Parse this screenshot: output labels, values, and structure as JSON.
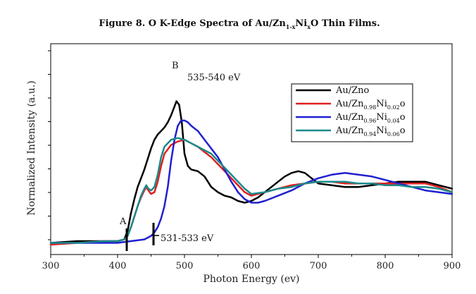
{
  "chart_data": {
    "type": "line",
    "title": {
      "prefix": "Figure 8. O K-Edge Spectra of Au/Zn",
      "sub1": "1-x",
      "mid": "Ni",
      "sub2": "x",
      "suffix": "O Thin Films."
    },
    "xlabel": "Photon Energy (ev)",
    "ylabel": "Normalized Intensity (a.u.)",
    "xlim": [
      300,
      900
    ],
    "ylim": [
      0,
      1.0
    ],
    "x_ticks": [
      300,
      400,
      500,
      600,
      700,
      800,
      900
    ],
    "grid": false,
    "legend_position": "right",
    "annotations": {
      "peak_B": "B",
      "peak_B_range": "535-540 eV",
      "edge_A": "A",
      "edge_range": "531-533 eV"
    },
    "series": [
      {
        "name": "Au/Zno",
        "legend": [
          [
            "Au/Zno",
            ""
          ]
        ],
        "color": "#000000",
        "x": [
          300,
          340,
          380,
          400,
          410,
          415,
          420,
          425,
          430,
          435,
          440,
          445,
          450,
          455,
          460,
          465,
          470,
          475,
          480,
          485,
          488,
          492,
          496,
          500,
          505,
          510,
          520,
          530,
          540,
          550,
          560,
          570,
          580,
          590,
          600,
          610,
          620,
          630,
          640,
          650,
          660,
          670,
          680,
          690,
          700,
          720,
          740,
          760,
          780,
          800,
          820,
          840,
          860,
          880,
          900
        ],
        "y": [
          0.01,
          0.02,
          0.02,
          0.02,
          0.03,
          0.08,
          0.18,
          0.26,
          0.33,
          0.38,
          0.43,
          0.49,
          0.55,
          0.6,
          0.63,
          0.65,
          0.67,
          0.7,
          0.74,
          0.79,
          0.82,
          0.8,
          0.7,
          0.52,
          0.45,
          0.43,
          0.42,
          0.39,
          0.33,
          0.3,
          0.28,
          0.27,
          0.25,
          0.24,
          0.25,
          0.27,
          0.3,
          0.33,
          0.36,
          0.39,
          0.41,
          0.42,
          0.41,
          0.38,
          0.35,
          0.34,
          0.33,
          0.33,
          0.34,
          0.35,
          0.36,
          0.36,
          0.36,
          0.34,
          0.32
        ]
      },
      {
        "name": "Au/Zn0.98Ni0.02O",
        "legend": [
          [
            "Au/Zn",
            ""
          ],
          [
            "0.98",
            "sub"
          ],
          [
            "Ni",
            ""
          ],
          [
            "0.02",
            "sub"
          ],
          [
            "o",
            ""
          ]
        ],
        "color": "#e02020",
        "x": [
          300,
          340,
          380,
          400,
          410,
          415,
          420,
          425,
          430,
          435,
          440,
          443,
          446,
          450,
          455,
          460,
          465,
          470,
          480,
          490,
          500,
          510,
          520,
          530,
          540,
          550,
          560,
          570,
          580,
          590,
          600,
          620,
          640,
          660,
          680,
          700,
          720,
          740,
          760,
          780,
          800,
          820,
          840,
          860,
          880,
          900
        ],
        "y": [
          0.0,
          0.01,
          0.02,
          0.02,
          0.03,
          0.05,
          0.1,
          0.16,
          0.22,
          0.27,
          0.31,
          0.33,
          0.31,
          0.29,
          0.3,
          0.36,
          0.45,
          0.52,
          0.57,
          0.59,
          0.6,
          0.58,
          0.56,
          0.53,
          0.5,
          0.46,
          0.42,
          0.38,
          0.34,
          0.3,
          0.28,
          0.3,
          0.32,
          0.34,
          0.35,
          0.36,
          0.36,
          0.35,
          0.35,
          0.35,
          0.35,
          0.35,
          0.35,
          0.35,
          0.33,
          0.3
        ]
      },
      {
        "name": "Au/Zn0.96Ni0.04O",
        "legend": [
          [
            "Au/Zn",
            ""
          ],
          [
            "0.96",
            "sub"
          ],
          [
            "Ni",
            ""
          ],
          [
            "0.04",
            "sub"
          ],
          [
            "o",
            ""
          ]
        ],
        "color": "#2020d0",
        "x": [
          300,
          340,
          380,
          400,
          420,
          440,
          450,
          455,
          460,
          465,
          470,
          475,
          480,
          485,
          490,
          495,
          500,
          505,
          510,
          520,
          530,
          540,
          550,
          560,
          570,
          580,
          590,
          600,
          610,
          620,
          640,
          660,
          680,
          700,
          720,
          740,
          760,
          780,
          800,
          820,
          840,
          860,
          880,
          900
        ],
        "y": [
          0.01,
          0.01,
          0.01,
          0.01,
          0.02,
          0.03,
          0.05,
          0.07,
          0.1,
          0.15,
          0.22,
          0.33,
          0.48,
          0.6,
          0.68,
          0.71,
          0.71,
          0.7,
          0.68,
          0.65,
          0.6,
          0.55,
          0.5,
          0.43,
          0.36,
          0.3,
          0.26,
          0.24,
          0.24,
          0.25,
          0.28,
          0.31,
          0.35,
          0.38,
          0.4,
          0.41,
          0.4,
          0.39,
          0.37,
          0.35,
          0.33,
          0.31,
          0.3,
          0.29
        ]
      },
      {
        "name": "Au/Zn0.94Ni0.06O",
        "legend": [
          [
            "Au/Zn",
            ""
          ],
          [
            "0.94",
            "sub"
          ],
          [
            "Ni",
            ""
          ],
          [
            "0.06",
            "sub"
          ],
          [
            "o",
            ""
          ]
        ],
        "color": "#1a8a8a",
        "x": [
          300,
          340,
          380,
          400,
          410,
          415,
          420,
          425,
          430,
          435,
          440,
          443,
          446,
          450,
          455,
          460,
          465,
          470,
          480,
          490,
          500,
          510,
          520,
          530,
          540,
          550,
          560,
          570,
          580,
          590,
          600,
          620,
          640,
          660,
          680,
          700,
          720,
          740,
          760,
          780,
          800,
          820,
          840,
          860,
          880,
          900
        ],
        "y": [
          0.01,
          0.01,
          0.02,
          0.02,
          0.03,
          0.05,
          0.1,
          0.16,
          0.22,
          0.28,
          0.32,
          0.34,
          0.32,
          0.31,
          0.33,
          0.4,
          0.5,
          0.56,
          0.6,
          0.61,
          0.6,
          0.58,
          0.56,
          0.54,
          0.52,
          0.48,
          0.44,
          0.4,
          0.36,
          0.32,
          0.29,
          0.3,
          0.32,
          0.33,
          0.35,
          0.36,
          0.36,
          0.36,
          0.35,
          0.35,
          0.34,
          0.34,
          0.33,
          0.33,
          0.32,
          0.3
        ]
      }
    ]
  }
}
